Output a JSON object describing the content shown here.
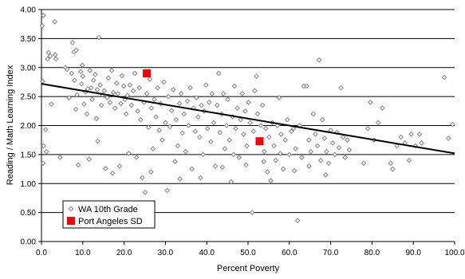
{
  "chart_data": {
    "type": "scatter",
    "title": "",
    "xlabel": "Percent Poverty",
    "ylabel": "Reading / Math Learning Index",
    "xlim": [
      0,
      100
    ],
    "ylim": [
      0,
      4
    ],
    "x_ticks": [
      "0.0",
      "10.0",
      "20.0",
      "30.0",
      "40.0",
      "50.0",
      "60.0",
      "70.0",
      "80.0",
      "90.0",
      "100.0"
    ],
    "y_ticks": [
      "0.00",
      "0.50",
      "1.00",
      "1.50",
      "2.00",
      "2.50",
      "3.00",
      "3.50",
      "4.00"
    ],
    "grid": "horizontal",
    "legend_position": "bottom-left",
    "series": [
      {
        "name": "WA 10th Grade",
        "marker": "diamond",
        "color": "#808080",
        "points": [
          [
            0.2,
            3.72
          ],
          [
            0.3,
            2.76
          ],
          [
            0.5,
            3.9
          ],
          [
            0.5,
            1.65
          ],
          [
            0.4,
            1.35
          ],
          [
            1.0,
            1.93
          ],
          [
            1.5,
            3.15
          ],
          [
            1.7,
            3.26
          ],
          [
            2.1,
            3.2
          ],
          [
            2.4,
            2.37
          ],
          [
            3.2,
            3.79
          ],
          [
            3.3,
            3.22
          ],
          [
            3.5,
            3.15
          ],
          [
            5.8,
            3.0
          ],
          [
            6.2,
            2.97
          ],
          [
            6.7,
            2.48
          ],
          [
            7.3,
            2.9
          ],
          [
            7.5,
            3.43
          ],
          [
            7.9,
            3.27
          ],
          [
            8.0,
            2.78
          ],
          [
            8.4,
            3.3
          ],
          [
            8.3,
            2.28
          ],
          [
            8.6,
            2.53
          ],
          [
            8.9,
            1.32
          ],
          [
            9.5,
            2.93
          ],
          [
            9.7,
            2.72
          ],
          [
            9.9,
            3.04
          ],
          [
            10.0,
            2.85
          ],
          [
            10.3,
            2.37
          ],
          [
            10.7,
            2.58
          ],
          [
            11.0,
            2.2
          ],
          [
            11.2,
            2.63
          ],
          [
            11.7,
            2.95
          ],
          [
            12.0,
            2.65
          ],
          [
            12.3,
            2.45
          ],
          [
            12.6,
            2.78
          ],
          [
            13.0,
            2.88
          ],
          [
            13.3,
            2.12
          ],
          [
            13.5,
            2.62
          ],
          [
            13.9,
            3.52
          ],
          [
            13.6,
            1.73
          ],
          [
            14.2,
            2.7
          ],
          [
            14.5,
            2.35
          ],
          [
            14.8,
            2.53
          ],
          [
            15.2,
            2.6
          ],
          [
            15.5,
            1.26
          ],
          [
            15.9,
            2.48
          ],
          [
            16.2,
            2.82
          ],
          [
            16.6,
            2.4
          ],
          [
            17.0,
            2.95
          ],
          [
            17.4,
            2.57
          ],
          [
            17.8,
            2.3
          ],
          [
            18.2,
            2.73
          ],
          [
            18.5,
            2.55
          ],
          [
            18.9,
            1.3
          ],
          [
            19.2,
            2.38
          ],
          [
            19.5,
            2.86
          ],
          [
            19.9,
            2.68
          ],
          [
            20.2,
            2.45
          ],
          [
            20.5,
            2.2
          ],
          [
            20.8,
            2.52
          ],
          [
            21.1,
            1.52
          ],
          [
            21.4,
            2.7
          ],
          [
            21.8,
            2.35
          ],
          [
            22.2,
            2.6
          ],
          [
            22.6,
            2.9
          ],
          [
            23.0,
            1.45
          ],
          [
            23.3,
            2.25
          ],
          [
            23.7,
            2.65
          ],
          [
            24.0,
            2.1
          ],
          [
            24.4,
            1.1
          ],
          [
            24.8,
            2.4
          ],
          [
            25.1,
            0.85
          ],
          [
            25.5,
            2.55
          ],
          [
            25.9,
            1.97
          ],
          [
            26.2,
            2.8
          ],
          [
            26.6,
            2.3
          ],
          [
            27.0,
            1.6
          ],
          [
            27.3,
            2.45
          ],
          [
            27.7,
            2.15
          ],
          [
            28.1,
            2.65
          ],
          [
            28.5,
            1.92
          ],
          [
            28.8,
            2.38
          ],
          [
            29.2,
            1.75
          ],
          [
            29.6,
            2.75
          ],
          [
            30.0,
            2.05
          ],
          [
            30.4,
            0.88
          ],
          [
            30.7,
            2.5
          ],
          [
            31.1,
            1.98
          ],
          [
            31.5,
            2.26
          ],
          [
            31.9,
            2.62
          ],
          [
            32.3,
            1.38
          ],
          [
            32.6,
            2.1
          ],
          [
            33.0,
            1.65
          ],
          [
            33.4,
            2.38
          ],
          [
            33.8,
            2.55
          ],
          [
            34.1,
            1.87
          ],
          [
            34.5,
            2.2
          ],
          [
            34.9,
            1.55
          ],
          [
            35.3,
            2.42
          ],
          [
            35.6,
            2.0
          ],
          [
            36.0,
            2.65
          ],
          [
            36.4,
            1.25
          ],
          [
            36.8,
            2.3
          ],
          [
            37.2,
            1.9
          ],
          [
            37.5,
            2.48
          ],
          [
            37.9,
            2.15
          ],
          [
            38.3,
            1.8
          ],
          [
            38.7,
            2.35
          ],
          [
            39.1,
            1.5
          ],
          [
            39.4,
            2.25
          ],
          [
            39.8,
            2.7
          ],
          [
            40.2,
            1.95
          ],
          [
            40.6,
            2.4
          ],
          [
            41.0,
            1.72
          ],
          [
            41.3,
            2.55
          ],
          [
            41.7,
            2.05
          ],
          [
            42.1,
            1.3
          ],
          [
            42.5,
            2.35
          ],
          [
            42.9,
            2.9
          ],
          [
            43.2,
            1.88
          ],
          [
            43.6,
            2.2
          ],
          [
            44.0,
            2.55
          ],
          [
            44.4,
            1.6
          ],
          [
            44.8,
            2.0
          ],
          [
            45.1,
            2.45
          ],
          [
            45.5,
            1.75
          ],
          [
            45.9,
            1.03
          ],
          [
            46.3,
            2.15
          ],
          [
            46.7,
            2.68
          ],
          [
            47.0,
            1.95
          ],
          [
            47.4,
            2.3
          ],
          [
            47.8,
            1.45
          ],
          [
            48.2,
            2.1
          ],
          [
            48.6,
            2.55
          ],
          [
            48.9,
            1.85
          ],
          [
            49.3,
            2.25
          ],
          [
            49.7,
            1.65
          ],
          [
            50.1,
            2.4
          ],
          [
            50.5,
            2.05
          ],
          [
            51.0,
            0.5
          ],
          [
            51.3,
            1.9
          ],
          [
            51.6,
            2.6
          ],
          [
            52.0,
            2.85
          ],
          [
            52.3,
            2.2
          ],
          [
            52.7,
            1.7
          ],
          [
            53.1,
            2.0
          ],
          [
            53.5,
            2.35
          ],
          [
            53.9,
            1.55
          ],
          [
            54.3,
            1.95
          ],
          [
            54.7,
            1.2
          ],
          [
            55.1,
            1.8
          ],
          [
            55.5,
            1.05
          ],
          [
            55.9,
            2.05
          ],
          [
            56.3,
            1.65
          ],
          [
            56.7,
            1.4
          ],
          [
            57.1,
            2.0
          ],
          [
            57.5,
            2.48
          ],
          [
            58.0,
            1.85
          ],
          [
            58.5,
            1.25
          ],
          [
            59.0,
            1.75
          ],
          [
            59.5,
            2.1
          ],
          [
            60.0,
            1.5
          ],
          [
            60.5,
            1.9
          ],
          [
            61.0,
            1.95
          ],
          [
            61.5,
            1.6
          ],
          [
            62.0,
            0.36
          ],
          [
            62.5,
            2.0
          ],
          [
            63.0,
            1.45
          ],
          [
            63.5,
            2.68
          ],
          [
            64.2,
            2.68
          ],
          [
            64.7,
            1.75
          ],
          [
            65.2,
            1.55
          ],
          [
            65.8,
            2.2
          ],
          [
            66.3,
            1.85
          ],
          [
            66.8,
            1.65
          ],
          [
            67.2,
            3.13
          ],
          [
            67.6,
            1.4
          ],
          [
            68.0,
            2.1
          ],
          [
            68.5,
            1.78
          ],
          [
            69.0,
            1.55
          ],
          [
            69.5,
            1.35
          ],
          [
            70.0,
            1.92
          ],
          [
            70.5,
            1.7
          ],
          [
            71.0,
            1.5
          ],
          [
            71.5,
            1.88
          ],
          [
            72.0,
            1.62
          ],
          [
            72.5,
            2.65
          ],
          [
            73.0,
            1.8
          ],
          [
            73.5,
            1.45
          ],
          [
            74.0,
            1.75
          ],
          [
            74.5,
            1.58
          ],
          [
            78.0,
            1.35
          ],
          [
            79.0,
            1.95
          ],
          [
            79.6,
            2.4
          ],
          [
            80.5,
            1.75
          ],
          [
            81.5,
            2.05
          ],
          [
            82.5,
            2.3
          ],
          [
            84.5,
            1.35
          ],
          [
            85.0,
            1.25
          ],
          [
            86.0,
            1.65
          ],
          [
            87.0,
            1.8
          ],
          [
            88.0,
            1.7
          ],
          [
            89.0,
            1.4
          ],
          [
            89.5,
            1.85
          ],
          [
            90.5,
            1.65
          ],
          [
            91.5,
            1.85
          ],
          [
            92.0,
            1.7
          ],
          [
            97.5,
            2.83
          ],
          [
            98.5,
            1.78
          ],
          [
            99.5,
            2.02
          ],
          [
            1.2,
            1.55
          ],
          [
            4.5,
            1.45
          ],
          [
            11.5,
            1.42
          ],
          [
            17.2,
            1.18
          ],
          [
            26.5,
            1.2
          ],
          [
            33.5,
            1.08
          ],
          [
            38.5,
            1.1
          ],
          [
            43.8,
            1.28
          ],
          [
            46.5,
            1.5
          ],
          [
            49.5,
            1.32
          ],
          [
            53.8,
            1.38
          ],
          [
            57.8,
            1.52
          ],
          [
            61.2,
            1.22
          ],
          [
            64.8,
            1.3
          ],
          [
            68.8,
            1.15
          ]
        ]
      },
      {
        "name": "Port Angeles SD",
        "marker": "square",
        "color": "#ff0000",
        "points": [
          [
            25.5,
            2.9
          ],
          [
            52.8,
            1.73
          ]
        ]
      }
    ],
    "trendline": {
      "x": [
        0,
        100
      ],
      "y": [
        2.72,
        1.52
      ],
      "color": "#000000"
    }
  }
}
